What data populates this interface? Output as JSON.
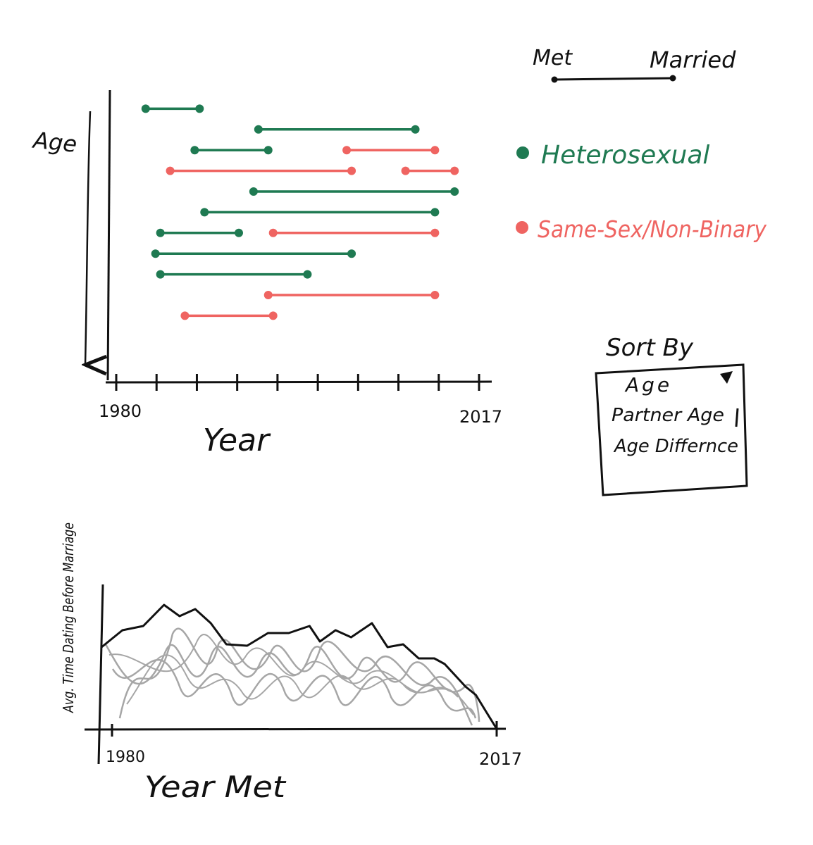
{
  "legend_key": {
    "start_label": "Met",
    "end_label": "Married"
  },
  "legend": {
    "items": [
      {
        "label": "Heterosexual",
        "color": "#1f7a52"
      },
      {
        "label": "Same-Sex/Non-Binary",
        "color": "#ef6461"
      }
    ]
  },
  "sort": {
    "title": "Sort By",
    "options": [
      "Age",
      "Partner Age",
      "Age Differnce"
    ]
  },
  "colors": {
    "ink": "#111111",
    "hetero": "#1f7a52",
    "samesex": "#ef6461",
    "squiggle": "#a6a6a6"
  },
  "chart_data": [
    {
      "type": "timeline",
      "xlabel": "Year",
      "ylabel": "Age",
      "x_tick_labels": [
        "1980",
        "2017"
      ],
      "xlim": [
        1980,
        2017
      ],
      "x_tick_count": 10,
      "series": [
        {
          "name": "Heterosexual",
          "color": "#1f7a52"
        },
        {
          "name": "Same-Sex/Non-Binary",
          "color": "#ef6461"
        }
      ],
      "segments": [
        {
          "row": 1,
          "met": 1983.0,
          "married": 1988.5,
          "group": "Heterosexual"
        },
        {
          "row": 2,
          "met": 1994.5,
          "married": 2010.5,
          "group": "Heterosexual"
        },
        {
          "row": 3,
          "met": 1988.0,
          "married": 1995.5,
          "group": "Heterosexual"
        },
        {
          "row": 3,
          "met": 2003.5,
          "married": 2012.5,
          "group": "Same-Sex/Non-Binary"
        },
        {
          "row": 4,
          "met": 1985.5,
          "married": 2004.0,
          "group": "Same-Sex/Non-Binary"
        },
        {
          "row": 4,
          "met": 2009.5,
          "married": 2014.5,
          "group": "Same-Sex/Non-Binary"
        },
        {
          "row": 5,
          "met": 1994.0,
          "married": 2014.5,
          "group": "Heterosexual"
        },
        {
          "row": 6,
          "met": 1989.0,
          "married": 2012.5,
          "group": "Heterosexual"
        },
        {
          "row": 7,
          "met": 1984.5,
          "married": 1992.5,
          "group": "Heterosexual"
        },
        {
          "row": 7,
          "met": 1996.0,
          "married": 2012.5,
          "group": "Same-Sex/Non-Binary"
        },
        {
          "row": 8,
          "met": 1984.0,
          "married": 2004.0,
          "group": "Heterosexual"
        },
        {
          "row": 9,
          "met": 1984.5,
          "married": 1999.5,
          "group": "Heterosexual"
        },
        {
          "row": 10,
          "met": 1995.5,
          "married": 2012.5,
          "group": "Same-Sex/Non-Binary"
        },
        {
          "row": 11,
          "met": 1987.0,
          "married": 1996.0,
          "group": "Same-Sex/Non-Binary"
        }
      ]
    },
    {
      "type": "area",
      "xlabel": "Year Met",
      "ylabel": "Avg. Time Dating Before Marriage",
      "x_tick_labels": [
        "1980",
        "2017"
      ],
      "xlim": [
        1980,
        2017
      ],
      "ylim": [
        0,
        10
      ],
      "x": [
        1979,
        1981,
        1983,
        1985,
        1986.5,
        1988,
        1989.5,
        1991,
        1993,
        1995,
        1997,
        1999,
        2000,
        2001.5,
        2003,
        2005,
        2006.5,
        2008,
        2009.5,
        2011,
        2012,
        2013,
        2014,
        2015,
        2016,
        2017
      ],
      "values": [
        5.8,
        7.0,
        7.3,
        8.8,
        8.0,
        8.5,
        7.5,
        6.0,
        5.9,
        6.8,
        6.8,
        7.3,
        6.2,
        7.0,
        6.5,
        7.5,
        5.8,
        6.0,
        5.0,
        5.0,
        4.6,
        3.8,
        3.0,
        2.4,
        1.2,
        0.0
      ]
    }
  ]
}
